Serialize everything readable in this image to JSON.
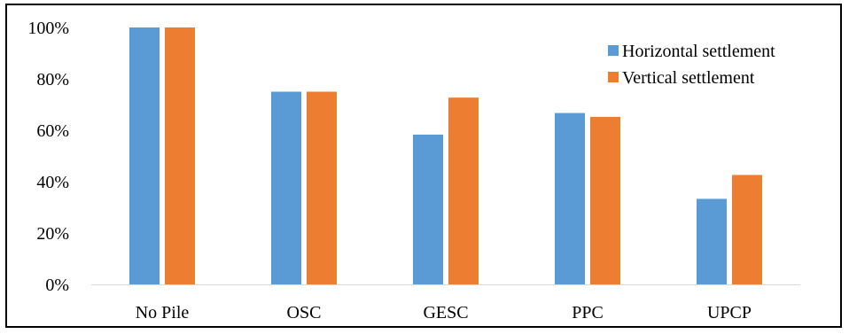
{
  "chart_data": {
    "type": "bar",
    "categories": [
      "No Pile",
      "OSC",
      "GESC",
      "PPC",
      "UPCP"
    ],
    "series": [
      {
        "name": "Horizontal settlement",
        "color": "#5B9BD5",
        "values": [
          100,
          75,
          58.3,
          66.7,
          33.3
        ]
      },
      {
        "name": "Vertical settlement",
        "color": "#ED7D31",
        "values": [
          100,
          75,
          72.7,
          65.2,
          42.6
        ]
      }
    ],
    "ylim": [
      0,
      100
    ],
    "yticks": [
      0,
      20,
      40,
      60,
      80,
      100
    ],
    "ytick_labels": [
      "0%",
      "20%",
      "40%",
      "60%",
      "80%",
      "100%"
    ],
    "legend_position": "top-right",
    "grid": false,
    "title": "",
    "xlabel": "",
    "ylabel": ""
  }
}
